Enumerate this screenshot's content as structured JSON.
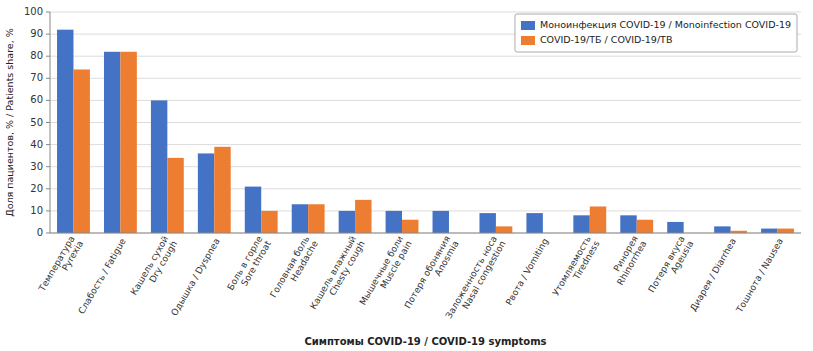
{
  "chart_data": {
    "type": "bar",
    "categories": [
      "Температура\nPyrexia",
      "Слабость / Fatigue",
      "Кашель сухой\nDry cough",
      "Одышка / Dyspnea",
      "Боль в горле\nSore throat",
      "Головная боль\nHeadache",
      "Кашель влажный\nChesty cough",
      "Мышечные боли\nMuscle pain",
      "Потеря обоняния\nAnosmia",
      "Заложенность носа\nNasal congestion",
      "Рвота / Vomiting",
      "Утомляемость\nTiredness",
      "Ринорея\nRhinorrhea",
      "Потеря вкуса\nAgeusia",
      "Диарея / Diarrhea",
      "Тошнота / Nausea"
    ],
    "series": [
      {
        "name": "Моноинфекция COVID-19 / Monoinfection COVID-19",
        "color": "#4472C4",
        "values": [
          92,
          82,
          60,
          36,
          21,
          13,
          10,
          10,
          10,
          9,
          9,
          8,
          8,
          5,
          3,
          2
        ]
      },
      {
        "name": "COVID-19/ТБ / COVID-19/TB",
        "color": "#ED7D31",
        "values": [
          74,
          82,
          34,
          39,
          10,
          13,
          15,
          6,
          0,
          3,
          0,
          12,
          6,
          0,
          1,
          2
        ]
      }
    ],
    "x_label": "Симптомы COVID-19 / COVID-19 symptoms",
    "y_label": "Доля пациентов, % / Patients share, %",
    "ylim": [
      0,
      100
    ],
    "yticks": [
      0,
      10,
      20,
      30,
      40,
      50,
      60,
      70,
      80,
      90,
      100
    ],
    "grid": true,
    "legend": "upper right"
  }
}
